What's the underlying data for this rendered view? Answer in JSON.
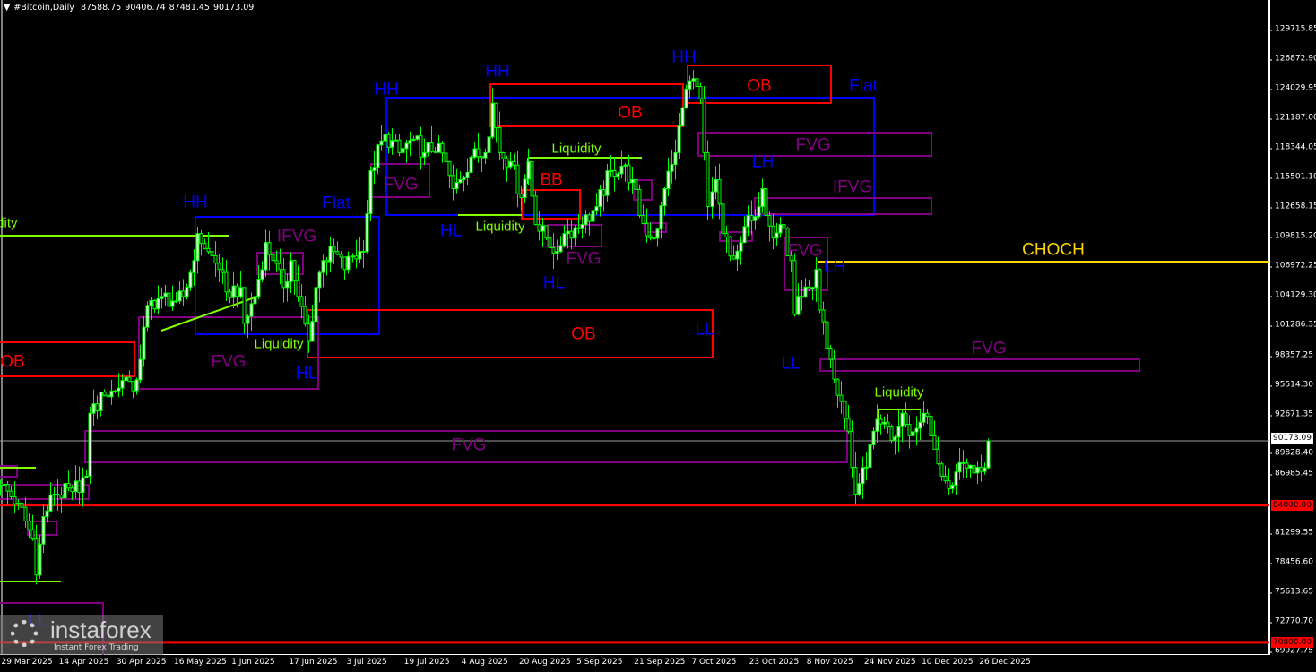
{
  "header": {
    "menu_icon": "triangle-down-icon",
    "symbol": "#Bitcoin,Daily",
    "open": "87588.75",
    "high": "90406.74",
    "low": "87481.45",
    "close": "90173.09"
  },
  "chart_data": {
    "type": "candlestick",
    "symbol": "#Bitcoin",
    "timeframe": "Daily",
    "candle_color": "#00ff00",
    "ylim": [
      69927.75,
      129715.85
    ],
    "y_ticks": [
      "129715.85",
      "126872.90",
      "124029.95",
      "121187.00",
      "118344.05",
      "115501.10",
      "112658.15",
      "109815.20",
      "106972.25",
      "104129.30",
      "101286.35",
      "98357.25",
      "95514.30",
      "92671.35",
      "89828.40",
      "86985.45",
      "81299.55",
      "78456.60",
      "75613.65",
      "72770.70",
      "69927.75"
    ],
    "x_ticks": [
      {
        "d": "2025-03-29",
        "label": "29 Mar 2025"
      },
      {
        "d": "2025-04-14",
        "label": "14 Apr 2025"
      },
      {
        "d": "2025-04-30",
        "label": "30 Apr 2025"
      },
      {
        "d": "2025-05-16",
        "label": "16 May 2025"
      },
      {
        "d": "2025-06-01",
        "label": "1 Jun 2025"
      },
      {
        "d": "2025-06-17",
        "label": "17 Jun 2025"
      },
      {
        "d": "2025-07-03",
        "label": "3 Jul 2025"
      },
      {
        "d": "2025-07-19",
        "label": "19 Jul 2025"
      },
      {
        "d": "2025-08-04",
        "label": "4 Aug 2025"
      },
      {
        "d": "2025-08-20",
        "label": "20 Aug 2025"
      },
      {
        "d": "2025-09-05",
        "label": "5 Sep 2025"
      },
      {
        "d": "2025-09-21",
        "label": "21 Sep 2025"
      },
      {
        "d": "2025-10-07",
        "label": "7 Oct 2025"
      },
      {
        "d": "2025-10-23",
        "label": "23 Oct 2025"
      },
      {
        "d": "2025-11-08",
        "label": "8 Nov 2025"
      },
      {
        "d": "2025-11-24",
        "label": "24 Nov 2025"
      },
      {
        "d": "2025-12-10",
        "label": "10 Dec 2025"
      },
      {
        "d": "2025-12-26",
        "label": "26 Dec 2025"
      }
    ],
    "closes": [
      {
        "d": "2025-03-29",
        "c": 85911
      },
      {
        "d": "2025-04-03",
        "c": 84183
      },
      {
        "d": "2025-04-07",
        "c": 80727
      },
      {
        "d": "2025-04-08",
        "c": 77271
      },
      {
        "d": "2025-04-10",
        "c": 82887
      },
      {
        "d": "2025-04-13",
        "c": 85047
      },
      {
        "d": "2025-04-18",
        "c": 85300
      },
      {
        "d": "2025-04-22",
        "c": 86775
      },
      {
        "d": "2025-04-23",
        "c": 92823
      },
      {
        "d": "2025-04-27",
        "c": 94551
      },
      {
        "d": "2025-04-30",
        "c": 94983
      },
      {
        "d": "2025-05-03",
        "c": 96279
      },
      {
        "d": "2025-05-05",
        "c": 94983
      },
      {
        "d": "2025-05-07",
        "c": 98007
      },
      {
        "d": "2025-05-09",
        "c": 103191
      },
      {
        "d": "2025-05-13",
        "c": 104055
      },
      {
        "d": "2025-05-17",
        "c": 103623
      },
      {
        "d": "2025-05-19",
        "c": 104055
      },
      {
        "d": "2025-05-22",
        "c": 107511
      },
      {
        "d": "2025-05-23",
        "c": 110100
      },
      {
        "d": "2025-05-26",
        "c": 108375
      },
      {
        "d": "2025-05-29",
        "c": 106647
      },
      {
        "d": "2025-05-31",
        "c": 104487
      },
      {
        "d": "2025-06-04",
        "c": 104919
      },
      {
        "d": "2025-06-05",
        "c": 101463
      },
      {
        "d": "2025-06-08",
        "c": 104055
      },
      {
        "d": "2025-06-11",
        "c": 109239
      },
      {
        "d": "2025-06-13",
        "c": 107511
      },
      {
        "d": "2025-06-16",
        "c": 104919
      },
      {
        "d": "2025-06-18",
        "c": 107511
      },
      {
        "d": "2025-06-20",
        "c": 104055
      },
      {
        "d": "2025-06-23",
        "c": 99735
      },
      {
        "d": "2025-06-25",
        "c": 104919
      },
      {
        "d": "2025-06-27",
        "c": 107511
      },
      {
        "d": "2025-06-30",
        "c": 108375
      },
      {
        "d": "2025-07-03",
        "c": 106647
      },
      {
        "d": "2025-07-05",
        "c": 107943
      },
      {
        "d": "2025-07-08",
        "c": 108375
      },
      {
        "d": "2025-07-10",
        "c": 116151
      },
      {
        "d": "2025-07-14",
        "c": 119607
      },
      {
        "d": "2025-07-18",
        "c": 117879
      },
      {
        "d": "2025-07-22",
        "c": 119175
      },
      {
        "d": "2025-07-25",
        "c": 117879
      },
      {
        "d": "2025-07-29",
        "c": 118743
      },
      {
        "d": "2025-08-02",
        "c": 114423
      },
      {
        "d": "2025-08-04",
        "c": 115287
      },
      {
        "d": "2025-08-07",
        "c": 117447
      },
      {
        "d": "2025-08-11",
        "c": 117879
      },
      {
        "d": "2025-08-13",
        "c": 122631
      },
      {
        "d": "2025-08-15",
        "c": 117879
      },
      {
        "d": "2025-08-18",
        "c": 117015
      },
      {
        "d": "2025-08-21",
        "c": 113559
      },
      {
        "d": "2025-08-23",
        "c": 117015
      },
      {
        "d": "2025-08-25",
        "c": 110967
      },
      {
        "d": "2025-08-28",
        "c": 109671
      },
      {
        "d": "2025-08-31",
        "c": 108375
      },
      {
        "d": "2025-09-02",
        "c": 110103
      },
      {
        "d": "2025-09-07",
        "c": 110967
      },
      {
        "d": "2025-09-11",
        "c": 112695
      },
      {
        "d": "2025-09-15",
        "c": 116151
      },
      {
        "d": "2025-09-18",
        "c": 116583
      },
      {
        "d": "2025-09-21",
        "c": 115287
      },
      {
        "d": "2025-09-23",
        "c": 111831
      },
      {
        "d": "2025-09-26",
        "c": 109671
      },
      {
        "d": "2025-09-28",
        "c": 110535
      },
      {
        "d": "2025-09-30",
        "c": 114423
      },
      {
        "d": "2025-10-03",
        "c": 117879
      },
      {
        "d": "2025-10-05",
        "c": 122199
      },
      {
        "d": "2025-10-07",
        "c": 124791
      },
      {
        "d": "2025-10-10",
        "c": 123063
      },
      {
        "d": "2025-10-11",
        "c": 117879
      },
      {
        "d": "2025-10-12",
        "c": 112695
      },
      {
        "d": "2025-10-14",
        "c": 115287
      },
      {
        "d": "2025-10-16",
        "c": 110103
      },
      {
        "d": "2025-10-18",
        "c": 107943
      },
      {
        "d": "2025-10-21",
        "c": 109239
      },
      {
        "d": "2025-10-23",
        "c": 111831
      },
      {
        "d": "2025-10-26",
        "c": 112695
      },
      {
        "d": "2025-10-27",
        "c": 114423
      },
      {
        "d": "2025-10-28",
        "c": 111831
      },
      {
        "d": "2025-10-30",
        "c": 109671
      },
      {
        "d": "2025-11-01",
        "c": 110967
      },
      {
        "d": "2025-11-04",
        "c": 107511
      },
      {
        "d": "2025-11-05",
        "c": 102327
      },
      {
        "d": "2025-11-07",
        "c": 104055
      },
      {
        "d": "2025-11-10",
        "c": 104919
      },
      {
        "d": "2025-11-11",
        "c": 106647
      },
      {
        "d": "2025-11-12",
        "c": 102759
      },
      {
        "d": "2025-11-15",
        "c": 98007
      },
      {
        "d": "2025-11-17",
        "c": 94551
      },
      {
        "d": "2025-11-20",
        "c": 91095
      },
      {
        "d": "2025-11-22",
        "c": 85047
      },
      {
        "d": "2025-11-25",
        "c": 87639
      },
      {
        "d": "2025-11-27",
        "c": 91095
      },
      {
        "d": "2025-11-30",
        "c": 91959
      },
      {
        "d": "2025-12-02",
        "c": 90231
      },
      {
        "d": "2025-12-05",
        "c": 92823
      },
      {
        "d": "2025-12-07",
        "c": 90663
      },
      {
        "d": "2025-12-10",
        "c": 91959
      },
      {
        "d": "2025-12-11",
        "c": 92823
      },
      {
        "d": "2025-12-14",
        "c": 89367
      },
      {
        "d": "2025-12-16",
        "c": 86775
      },
      {
        "d": "2025-12-19",
        "c": 85911
      },
      {
        "d": "2025-12-21",
        "c": 88071
      },
      {
        "d": "2025-12-24",
        "c": 87812
      },
      {
        "d": "2025-12-26",
        "c": 87639
      },
      {
        "d": "2025-12-28",
        "c": 87588.75
      }
    ],
    "last_candle": {
      "d": "2025-12-29",
      "o": 87588.75,
      "h": 90406.74,
      "l": 87481.45,
      "c": 90173.09
    },
    "current_price": {
      "label": "90173.09",
      "color": "#ffffff"
    },
    "levels": [
      {
        "price": 84000,
        "label": "84000.00",
        "color": "#ff0000"
      },
      {
        "price": 70800,
        "label": "70800.00",
        "color": "#ff0000"
      }
    ]
  },
  "annotation_colors": {
    "structure": "#0000ff",
    "ob": "#ff0000",
    "fvg": "#800080",
    "liquidity": "#7fff00",
    "choch": "#ffd700"
  },
  "annotations": [
    {
      "text": "Liquidity",
      "kind": "liquidity"
    },
    {
      "text": "OB",
      "kind": "ob"
    },
    {
      "text": "HH",
      "kind": "structure"
    },
    {
      "text": "Flat",
      "kind": "structure"
    },
    {
      "text": "IFVG",
      "kind": "fvg"
    },
    {
      "text": "FVG",
      "kind": "fvg"
    },
    {
      "text": "Liquidity",
      "kind": "liquidity"
    },
    {
      "text": "HL",
      "kind": "structure"
    },
    {
      "text": "HH",
      "kind": "structure"
    },
    {
      "text": "FVG",
      "kind": "fvg"
    },
    {
      "text": "HH",
      "kind": "structure"
    },
    {
      "text": "OB",
      "kind": "ob"
    },
    {
      "text": "Liquidity",
      "kind": "liquidity"
    },
    {
      "text": "BB",
      "kind": "ob"
    },
    {
      "text": "HL",
      "kind": "structure"
    },
    {
      "text": "Liquidity",
      "kind": "liquidity"
    },
    {
      "text": "FVG",
      "kind": "fvg"
    },
    {
      "text": "HL",
      "kind": "structure"
    },
    {
      "text": "HH",
      "kind": "structure"
    },
    {
      "text": "OB",
      "kind": "ob"
    },
    {
      "text": "Flat",
      "kind": "structure"
    },
    {
      "text": "FVG",
      "kind": "fvg"
    },
    {
      "text": "LH",
      "kind": "structure"
    },
    {
      "text": "IFVG",
      "kind": "fvg"
    },
    {
      "text": "FVG",
      "kind": "fvg"
    },
    {
      "text": "LH",
      "kind": "structure"
    },
    {
      "text": "CHOCH",
      "kind": "choch"
    },
    {
      "text": "LL",
      "kind": "structure"
    },
    {
      "text": "OB",
      "kind": "ob"
    },
    {
      "text": "LL",
      "kind": "structure"
    },
    {
      "text": "FVG",
      "kind": "fvg"
    },
    {
      "text": "Liquidity",
      "kind": "liquidity"
    },
    {
      "text": "FVG",
      "kind": "fvg"
    },
    {
      "text": "LL",
      "kind": "structure"
    }
  ],
  "watermark": {
    "brand": "instaforex",
    "tagline": "Instant Forex Trading"
  }
}
